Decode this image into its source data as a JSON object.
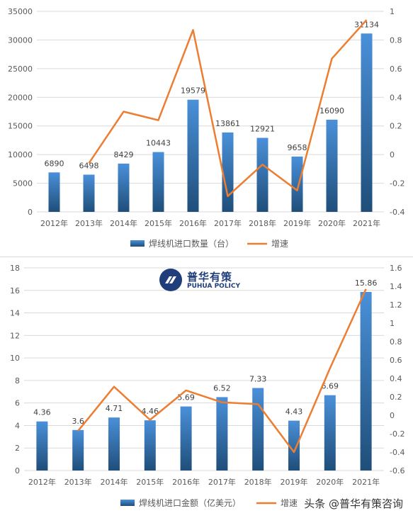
{
  "chart_data": [
    {
      "type": "bar",
      "categories": [
        "2012年",
        "2013年",
        "2014年",
        "2015年",
        "2016年",
        "2017年",
        "2018年",
        "2019年",
        "2020年",
        "2021年"
      ],
      "series": [
        {
          "name": "焊线机进口数量（台）",
          "values": [
            6890,
            6498,
            8429,
            10443,
            19579,
            13861,
            12921,
            9658,
            16090,
            31134
          ],
          "axis": "left",
          "color": "#2e75b6"
        },
        {
          "name": "增速",
          "type": "line",
          "values": [
            null,
            -0.06,
            0.3,
            0.24,
            0.87,
            -0.29,
            -0.07,
            -0.25,
            0.67,
            0.94
          ],
          "axis": "right",
          "color": "#ed7d31"
        }
      ],
      "data_labels": [
        "6890",
        "6498",
        "8429",
        "10443",
        "19579",
        "13861",
        "12921",
        "9658",
        "16090",
        "31134"
      ],
      "ylim_left": [
        0,
        35000
      ],
      "left_ticks": [
        "0",
        "5000",
        "10000",
        "15000",
        "20000",
        "25000",
        "30000",
        "35000"
      ],
      "ylim_right": [
        -0.4,
        1
      ],
      "right_ticks": [
        "-0.4",
        "-0.2",
        "0",
        "0.2",
        "0.4",
        "0.6",
        "0.8",
        "1"
      ],
      "legend": "bottom",
      "grid": true
    },
    {
      "type": "bar",
      "categories": [
        "2012年",
        "2013年",
        "2014年",
        "2015年",
        "2016年",
        "2017年",
        "2018年",
        "2019年",
        "2020年",
        "2021年"
      ],
      "series": [
        {
          "name": "焊线机进口金额（亿美元）",
          "values": [
            4.36,
            3.6,
            4.71,
            4.46,
            5.69,
            6.52,
            7.33,
            4.43,
            6.69,
            15.86
          ],
          "axis": "left",
          "color": "#2e75b6"
        },
        {
          "name": "增速",
          "type": "line",
          "values": [
            null,
            -0.17,
            0.31,
            -0.05,
            0.27,
            0.14,
            0.12,
            -0.4,
            0.51,
            1.37
          ],
          "axis": "right",
          "color": "#ed7d31"
        }
      ],
      "data_labels": [
        "4.36",
        "3.6",
        "4.71",
        "4.46",
        "5.69",
        "6.52",
        "7.33",
        "4.43",
        "6.69",
        "15.86"
      ],
      "ylim_left": [
        0,
        18
      ],
      "left_ticks": [
        "0",
        "2",
        "4",
        "6",
        "8",
        "10",
        "12",
        "14",
        "16",
        "18"
      ],
      "ylim_right": [
        -0.6,
        1.6
      ],
      "right_ticks": [
        "-0.6",
        "-0.4",
        "-0.2",
        "0",
        "0.2",
        "0.4",
        "0.6",
        "0.8",
        "1",
        "1.2",
        "1.4",
        "1.6"
      ],
      "legend": "bottom",
      "grid": true
    }
  ],
  "logo": {
    "cn": "普华有策",
    "en": "PUHUA POLICY"
  },
  "watermark": "头条 @普华有策咨询",
  "colors": {
    "bar": "#2e75b6",
    "line": "#ed7d31",
    "grid": "#d9d9d9"
  }
}
